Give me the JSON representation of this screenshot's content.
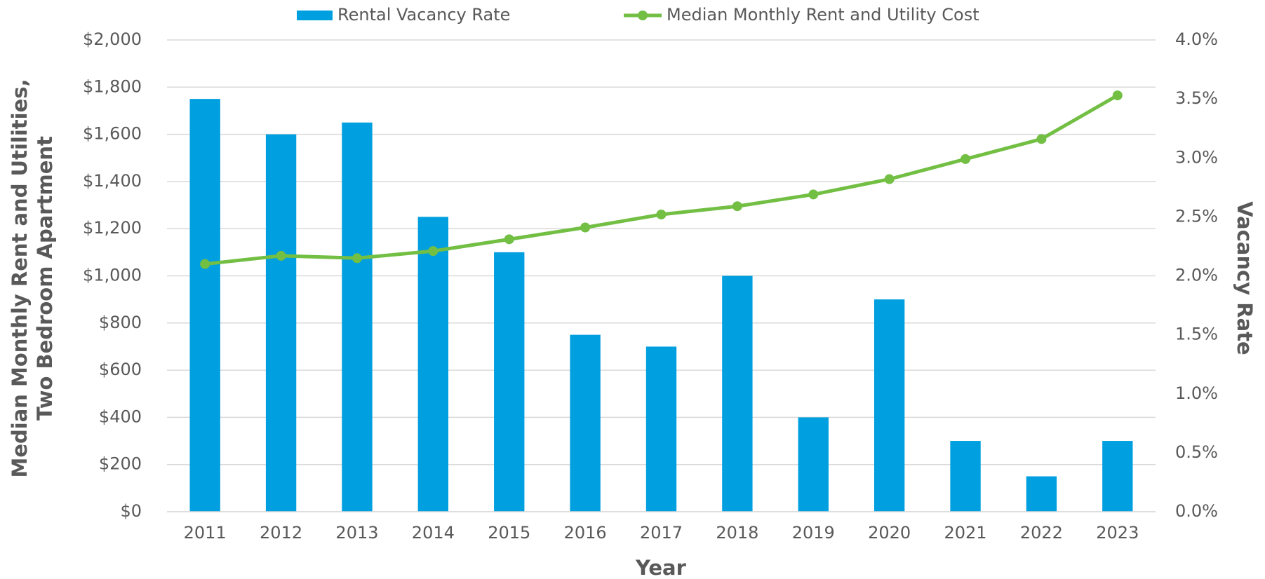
{
  "chart_data": {
    "type": "bar_line",
    "xlabel": "Year",
    "ylabel": [
      "Median Monthly Rent and Utilities,",
      "Two Bedroom Apartment"
    ],
    "y2label": "Vacancy Rate",
    "categories": [
      "2011",
      "2012",
      "2013",
      "2014",
      "2015",
      "2016",
      "2017",
      "2018",
      "2019",
      "2020",
      "2021",
      "2022",
      "2023"
    ],
    "series": [
      {
        "name": "Rental Vacancy Rate",
        "type": "bar",
        "axis": "y2",
        "color": "#009fdf",
        "values": [
          3.5,
          3.2,
          3.3,
          2.5,
          2.2,
          1.5,
          1.4,
          2.0,
          0.8,
          1.8,
          0.6,
          0.3,
          0.6
        ]
      },
      {
        "name": "Median Monthly Rent and Utility Cost",
        "type": "line",
        "axis": "y",
        "color": "#72bf44",
        "values": [
          1050,
          1085,
          1075,
          1105,
          1155,
          1205,
          1260,
          1295,
          1345,
          1410,
          1495,
          1580,
          1765
        ]
      }
    ],
    "ylim": [
      0,
      2000
    ],
    "yticks": [
      {
        "value": 0,
        "label": "$0"
      },
      {
        "value": 200,
        "label": "$200"
      },
      {
        "value": 400,
        "label": "$400"
      },
      {
        "value": 600,
        "label": "$600"
      },
      {
        "value": 800,
        "label": "$800"
      },
      {
        "value": 1000,
        "label": "$1,000"
      },
      {
        "value": 1200,
        "label": "$1,200"
      },
      {
        "value": 1400,
        "label": "$1,400"
      },
      {
        "value": 1600,
        "label": "$1,600"
      },
      {
        "value": 1800,
        "label": "$1,800"
      },
      {
        "value": 2000,
        "label": "$2,000"
      }
    ],
    "y2lim": [
      0,
      4
    ],
    "y2ticks": [
      {
        "value": 0,
        "label": "0.0%"
      },
      {
        "value": 0.5,
        "label": "0.5%"
      },
      {
        "value": 1,
        "label": "1.0%"
      },
      {
        "value": 1.5,
        "label": "1.5%"
      },
      {
        "value": 2,
        "label": "2.0%"
      },
      {
        "value": 2.5,
        "label": "2.5%"
      },
      {
        "value": 3,
        "label": "3.0%"
      },
      {
        "value": 3.5,
        "label": "3.5%"
      },
      {
        "value": 4,
        "label": "4.0%"
      }
    ],
    "grid": true,
    "legend": "top"
  }
}
